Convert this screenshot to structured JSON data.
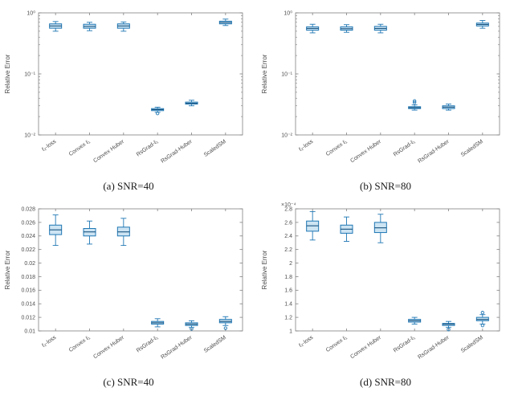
{
  "style": {
    "box_edge": "#1f77b4",
    "box_fill": "#cde4f3",
    "median": "#16527e",
    "whisker": "#1f77b4",
    "outlier": "#1f77b4",
    "axis": "#808080",
    "tick_label": "#4d4d4d"
  },
  "captions": [
    "(a) SNR=40",
    "(b) SNR=80",
    "(c) SNR=40",
    "(d) SNR=80"
  ],
  "chart_data": [
    {
      "type": "boxplot",
      "title": "",
      "xlabel": "",
      "ylabel": "Relative Error",
      "scale": "log",
      "ylim": [
        0.01,
        1
      ],
      "yticks": [
        {
          "v": 0.01,
          "label": "10⁻²"
        },
        {
          "v": 0.1,
          "label": "10⁻¹"
        },
        {
          "v": 1,
          "label": "10⁰"
        }
      ],
      "categories": [
        "ℓ₂-loss",
        "Convex ℓ₁",
        "Convex Huber",
        "RsGrad-ℓ₁",
        "RsGrad-Huber",
        "ScaledSM"
      ],
      "boxes": [
        {
          "lo": 0.5,
          "q1": 0.56,
          "med": 0.61,
          "q3": 0.66,
          "hi": 0.72,
          "outliers": []
        },
        {
          "lo": 0.51,
          "q1": 0.56,
          "med": 0.6,
          "q3": 0.65,
          "hi": 0.7,
          "outliers": []
        },
        {
          "lo": 0.5,
          "q1": 0.56,
          "med": 0.61,
          "q3": 0.66,
          "hi": 0.71,
          "outliers": []
        },
        {
          "lo": 0.0235,
          "q1": 0.025,
          "med": 0.026,
          "q3": 0.027,
          "hi": 0.0285,
          "outliers": [
            0.0225
          ]
        },
        {
          "lo": 0.03,
          "q1": 0.032,
          "med": 0.033,
          "q3": 0.0345,
          "hi": 0.037,
          "outliers": []
        },
        {
          "lo": 0.62,
          "q1": 0.66,
          "med": 0.695,
          "q3": 0.73,
          "hi": 0.79,
          "outliers": []
        }
      ]
    },
    {
      "type": "boxplot",
      "title": "",
      "xlabel": "",
      "ylabel": "Relative Error",
      "scale": "log",
      "ylim": [
        0.01,
        1
      ],
      "yticks": [
        {
          "v": 0.01,
          "label": "10⁻²"
        },
        {
          "v": 0.1,
          "label": "10⁻¹"
        },
        {
          "v": 1,
          "label": "10⁰"
        }
      ],
      "categories": [
        "ℓ₂-loss",
        "Convex ℓ₁",
        "Convex Huber",
        "RsGrad-ℓ₁",
        "RsGrad-Huber",
        "ScaledSM"
      ],
      "boxes": [
        {
          "lo": 0.47,
          "q1": 0.52,
          "med": 0.555,
          "q3": 0.59,
          "hi": 0.65,
          "outliers": []
        },
        {
          "lo": 0.48,
          "q1": 0.52,
          "med": 0.55,
          "q3": 0.59,
          "hi": 0.64,
          "outliers": []
        },
        {
          "lo": 0.47,
          "q1": 0.52,
          "med": 0.555,
          "q3": 0.6,
          "hi": 0.65,
          "outliers": []
        },
        {
          "lo": 0.0255,
          "q1": 0.027,
          "med": 0.028,
          "q3": 0.029,
          "hi": 0.031,
          "outliers": [
            0.034,
            0.036
          ]
        },
        {
          "lo": 0.0255,
          "q1": 0.027,
          "med": 0.0285,
          "q3": 0.03,
          "hi": 0.032,
          "outliers": []
        },
        {
          "lo": 0.56,
          "q1": 0.61,
          "med": 0.645,
          "q3": 0.68,
          "hi": 0.75,
          "outliers": []
        }
      ]
    },
    {
      "type": "boxplot",
      "title": "",
      "xlabel": "",
      "ylabel": "Relative Error",
      "scale": "linear",
      "ylim": [
        0.01,
        0.028
      ],
      "yticks": [
        {
          "v": 0.01,
          "label": "0.01"
        },
        {
          "v": 0.012,
          "label": "0.012"
        },
        {
          "v": 0.014,
          "label": "0.014"
        },
        {
          "v": 0.016,
          "label": "0.016"
        },
        {
          "v": 0.018,
          "label": "0.018"
        },
        {
          "v": 0.02,
          "label": "0.02"
        },
        {
          "v": 0.022,
          "label": "0.022"
        },
        {
          "v": 0.024,
          "label": "0.024"
        },
        {
          "v": 0.026,
          "label": "0.026"
        },
        {
          "v": 0.028,
          "label": "0.028"
        }
      ],
      "categories": [
        "ℓ₂-loss",
        "Convex ℓ₁",
        "Convex Huber",
        "RsGrad-ℓ₁",
        "RsGrad-Huber",
        "ScaledSM"
      ],
      "boxes": [
        {
          "lo": 0.0226,
          "q1": 0.0242,
          "med": 0.0249,
          "q3": 0.0256,
          "hi": 0.0271,
          "outliers": []
        },
        {
          "lo": 0.0228,
          "q1": 0.024,
          "med": 0.0246,
          "q3": 0.0251,
          "hi": 0.0262,
          "outliers": []
        },
        {
          "lo": 0.0226,
          "q1": 0.024,
          "med": 0.0246,
          "q3": 0.0253,
          "hi": 0.0266,
          "outliers": []
        },
        {
          "lo": 0.0106,
          "q1": 0.011,
          "med": 0.0112,
          "q3": 0.0114,
          "hi": 0.0118,
          "outliers": []
        },
        {
          "lo": 0.0105,
          "q1": 0.0108,
          "med": 0.011,
          "q3": 0.0112,
          "hi": 0.0115,
          "outliers": [
            0.0103
          ]
        },
        {
          "lo": 0.0108,
          "q1": 0.0112,
          "med": 0.0114,
          "q3": 0.0117,
          "hi": 0.0121,
          "outliers": [
            0.0104
          ]
        }
      ]
    },
    {
      "type": "boxplot",
      "title": "",
      "xlabel": "",
      "ylabel": "Relative Error",
      "scale": "linear",
      "exp_label": "×10⁻⁴",
      "ylim": [
        1,
        2.8
      ],
      "yticks": [
        {
          "v": 1,
          "label": "1"
        },
        {
          "v": 1.2,
          "label": "1.2"
        },
        {
          "v": 1.4,
          "label": "1.4"
        },
        {
          "v": 1.6,
          "label": "1.6"
        },
        {
          "v": 1.8,
          "label": "1.8"
        },
        {
          "v": 2,
          "label": "2"
        },
        {
          "v": 2.2,
          "label": "2.2"
        },
        {
          "v": 2.4,
          "label": "2.4"
        },
        {
          "v": 2.6,
          "label": "2.6"
        },
        {
          "v": 2.8,
          "label": "2.8"
        }
      ],
      "categories": [
        "ℓ₂-loss",
        "Convex ℓ₁",
        "Convex Huber",
        "RsGrad-ℓ₁",
        "RsGrad-Huber",
        "ScaledSM"
      ],
      "boxes": [
        {
          "lo": 2.34,
          "q1": 2.47,
          "med": 2.55,
          "q3": 2.62,
          "hi": 2.76,
          "outliers": []
        },
        {
          "lo": 2.32,
          "q1": 2.44,
          "med": 2.5,
          "q3": 2.56,
          "hi": 2.68,
          "outliers": []
        },
        {
          "lo": 2.3,
          "q1": 2.45,
          "med": 2.52,
          "q3": 2.6,
          "hi": 2.72,
          "outliers": []
        },
        {
          "lo": 1.1,
          "q1": 1.13,
          "med": 1.15,
          "q3": 1.17,
          "hi": 1.2,
          "outliers": []
        },
        {
          "lo": 1.05,
          "q1": 1.08,
          "med": 1.1,
          "q3": 1.11,
          "hi": 1.14,
          "outliers": [
            1.02
          ]
        },
        {
          "lo": 1.1,
          "q1": 1.15,
          "med": 1.17,
          "q3": 1.2,
          "hi": 1.24,
          "outliers": [
            1.27,
            1.08
          ]
        }
      ]
    }
  ]
}
